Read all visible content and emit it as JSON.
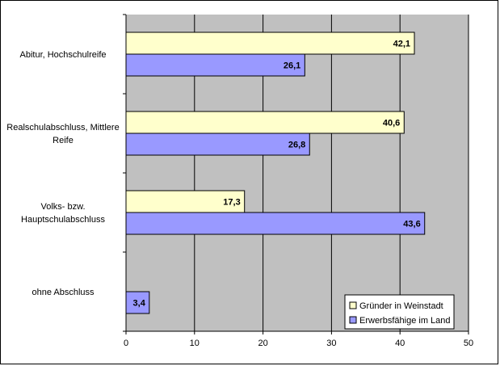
{
  "chart_data": {
    "type": "bar",
    "orientation": "horizontal",
    "categories": [
      [
        "Abitur, Hochschulreife"
      ],
      [
        "Realschulabschluss, Mittlere",
        "Reife"
      ],
      [
        "Volks- bzw.",
        "Hauptschulabschluss"
      ],
      [
        "ohne Abschluss"
      ]
    ],
    "series": [
      {
        "name": "Gründer in Weinstadt",
        "color": "#ffffcc",
        "values": [
          42.1,
          40.6,
          17.3,
          null
        ],
        "labels": [
          "42,1",
          "40,6",
          "17,3",
          ""
        ]
      },
      {
        "name": "Erwerbsfähige im Land",
        "color": "#9999ff",
        "values": [
          26.1,
          26.8,
          43.6,
          3.4
        ],
        "labels": [
          "26,1",
          "26,8",
          "43,6",
          "3,4"
        ]
      }
    ],
    "xlim": [
      0,
      50
    ],
    "xticks": [
      "0",
      "10",
      "20",
      "30",
      "40",
      "50"
    ],
    "grid": true,
    "plot_background": "#c0c0c0",
    "legend_position": "bottom-right"
  }
}
